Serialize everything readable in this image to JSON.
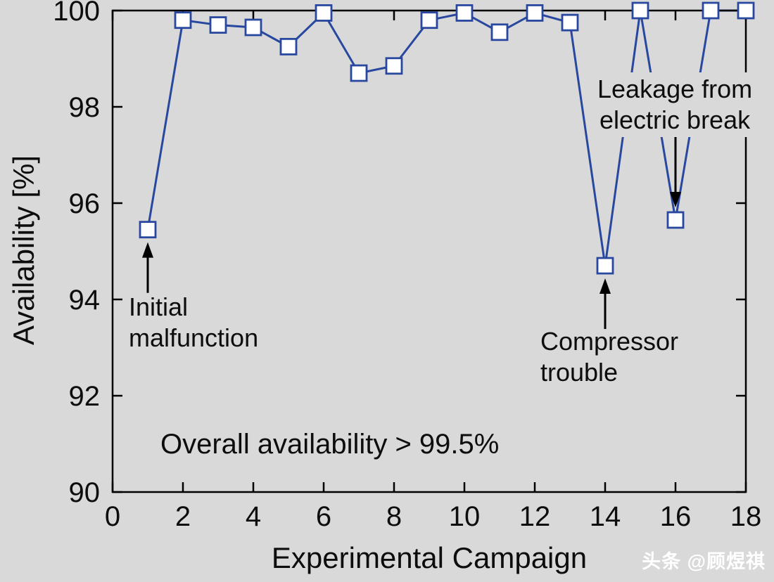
{
  "chart_data": {
    "type": "line",
    "title": "",
    "xlabel": "Experimental Campaign",
    "ylabel": "Availability [%]",
    "xlim": [
      0,
      18
    ],
    "ylim": [
      90,
      100
    ],
    "x_ticks": [
      0,
      2,
      4,
      6,
      8,
      10,
      12,
      14,
      16,
      18
    ],
    "y_ticks": [
      90,
      92,
      94,
      96,
      98,
      100
    ],
    "grid": false,
    "legend": "none",
    "series_color": "#28479f",
    "marker": "open-square",
    "x": [
      1,
      2,
      3,
      4,
      5,
      6,
      7,
      8,
      9,
      10,
      11,
      12,
      13,
      14,
      15,
      16,
      17,
      18
    ],
    "values": [
      95.45,
      99.8,
      99.7,
      99.65,
      99.25,
      99.95,
      98.7,
      98.85,
      99.8,
      99.95,
      99.55,
      99.95,
      99.75,
      94.7,
      100,
      95.65,
      100,
      100
    ],
    "annotations": [
      {
        "id": "initial-malfunction",
        "text": "Initial\nmalfunction",
        "target_x": 1,
        "target_y": 95.45,
        "arrow": "up"
      },
      {
        "id": "compressor-trouble",
        "text": "Compressor\ntrouble",
        "target_x": 14,
        "target_y": 94.7,
        "arrow": "up"
      },
      {
        "id": "leakage",
        "text": "Leakage from\nelectric break",
        "target_x": 16,
        "target_y": 95.65,
        "arrow": "down"
      },
      {
        "id": "overall",
        "text": "Overall availability > 99.5%",
        "arrow": "none"
      }
    ]
  },
  "colors": {
    "background": "#d9d9d9",
    "axis": "#000000",
    "line": "#28479f",
    "marker_fill": "#ffffff",
    "text": "#0d0d0d",
    "annotation_arrow": "#000000"
  },
  "watermark": {
    "text": "头条 @顾煜祺",
    "color": "#ffffff"
  }
}
